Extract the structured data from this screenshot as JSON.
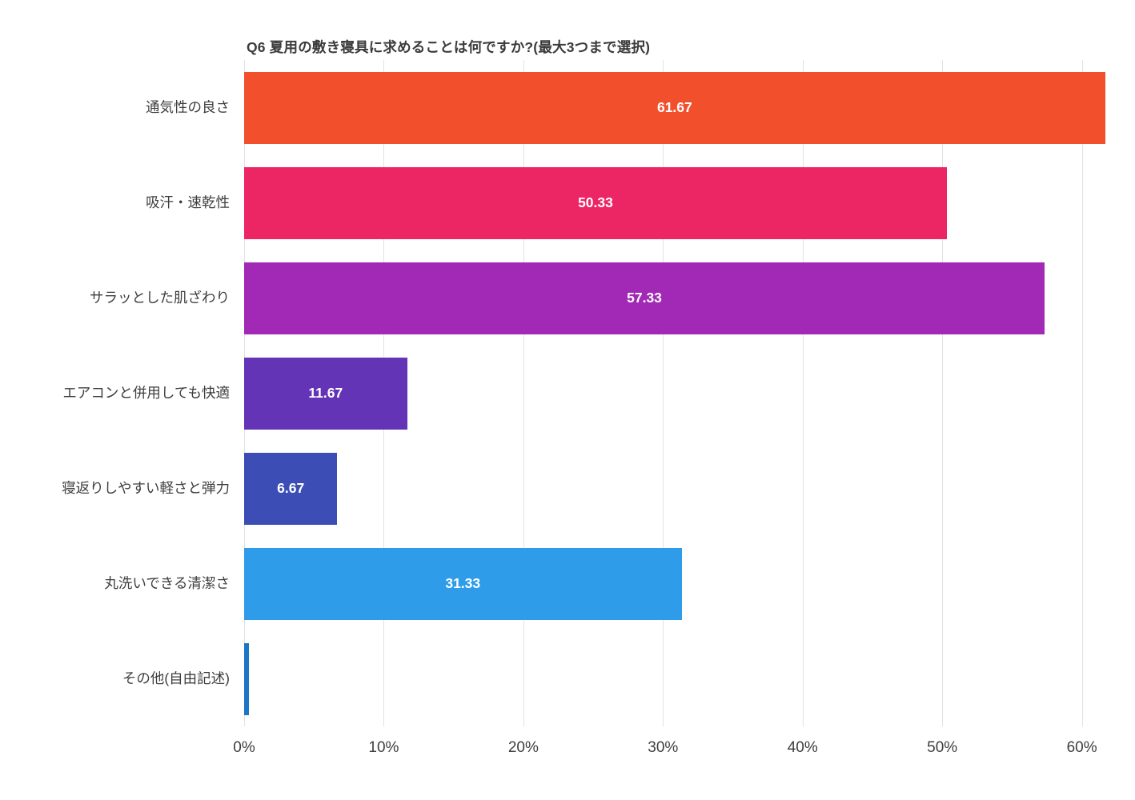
{
  "chart_data": {
    "type": "bar",
    "orientation": "horizontal",
    "title": "Q6 夏用の敷き寝具に求めることは何ですか?(最大3つまで選択)",
    "categories": [
      "通気性の良さ",
      "吸汗・速乾性",
      "サラッとした肌ざわり",
      "エアコンと併用しても快適",
      "寝返りしやすい軽さと弾力",
      "丸洗いできる清潔さ",
      "その他(自由記述)"
    ],
    "values": [
      61.67,
      50.33,
      57.33,
      11.67,
      6.67,
      31.33,
      0.33
    ],
    "value_labels": [
      "61.67",
      "50.33",
      "57.33",
      "11.67",
      "6.67",
      "31.33",
      ""
    ],
    "bar_colors": [
      "#f2502c",
      "#ec2664",
      "#a229b5",
      "#6334b6",
      "#3c4eb5",
      "#2e9ce9",
      "#1c76c6"
    ],
    "value_label_color": "#ffffff",
    "xlabel": "",
    "ylabel": "",
    "xlim": [
      0,
      62.2
    ],
    "x_ticks": [
      "0%",
      "10%",
      "20%",
      "30%",
      "40%",
      "50%",
      "60%"
    ],
    "x_tick_values": [
      0,
      10,
      20,
      30,
      40,
      50,
      60
    ],
    "grid": true,
    "gridline_color": "#e2e2e2",
    "background_color": "#ffffff",
    "legend": "none"
  }
}
